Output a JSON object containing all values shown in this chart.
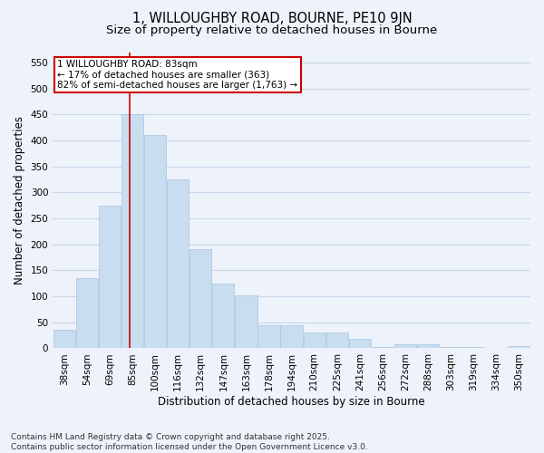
{
  "title1": "1, WILLOUGHBY ROAD, BOURNE, PE10 9JN",
  "title2": "Size of property relative to detached houses in Bourne",
  "xlabel": "Distribution of detached houses by size in Bourne",
  "ylabel": "Number of detached properties",
  "categories": [
    "38sqm",
    "54sqm",
    "69sqm",
    "85sqm",
    "100sqm",
    "116sqm",
    "132sqm",
    "147sqm",
    "163sqm",
    "178sqm",
    "194sqm",
    "210sqm",
    "225sqm",
    "241sqm",
    "256sqm",
    "272sqm",
    "288sqm",
    "303sqm",
    "319sqm",
    "334sqm",
    "350sqm"
  ],
  "values": [
    35,
    135,
    275,
    450,
    410,
    325,
    190,
    125,
    102,
    45,
    45,
    30,
    30,
    18,
    3,
    7,
    7,
    2,
    2,
    0,
    5
  ],
  "bar_color": "#c9ddf0",
  "bar_edge_color": "#a8c4e0",
  "annotation_text": "1 WILLOUGHBY ROAD: 83sqm\n← 17% of detached houses are smaller (363)\n82% of semi-detached houses are larger (1,763) →",
  "annotation_box_color": "white",
  "annotation_box_edge_color": "#cc0000",
  "vline_color": "#cc0000",
  "vline_x": 2.87,
  "ylim": [
    0,
    570
  ],
  "yticks": [
    0,
    50,
    100,
    150,
    200,
    250,
    300,
    350,
    400,
    450,
    500,
    550
  ],
  "background_color": "#eef2fa",
  "grid_color": "#c8d8ec",
  "footer_text": "Contains HM Land Registry data © Crown copyright and database right 2025.\nContains public sector information licensed under the Open Government Licence v3.0.",
  "title_fontsize": 10.5,
  "subtitle_fontsize": 9.5,
  "axis_label_fontsize": 8.5,
  "tick_fontsize": 7.5,
  "annotation_fontsize": 7.5,
  "footer_fontsize": 6.5
}
